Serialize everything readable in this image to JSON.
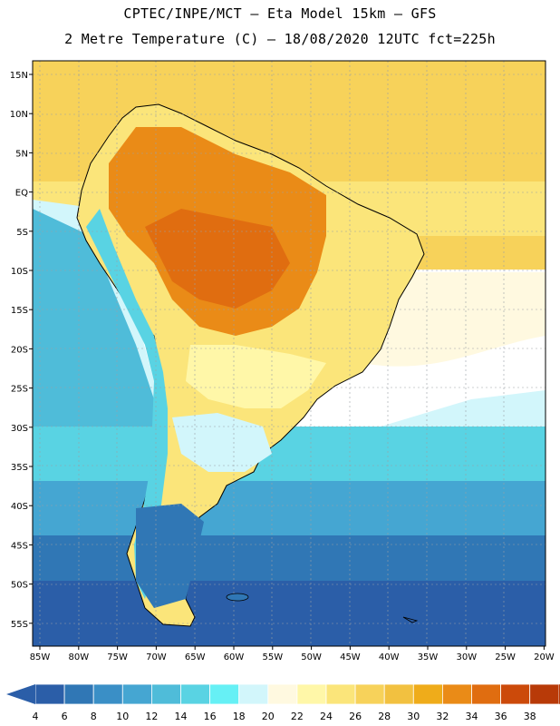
{
  "title_line1": "CPTEC/INPE/MCT –  Eta Model 15km – GFS",
  "title_line2": "2 Metre Temperature (C) – 18/08/2020 12UTC fct=225h",
  "lat_labels": [
    "15N",
    "10N",
    "5N",
    "EQ",
    "5S",
    "10S",
    "15S",
    "20S",
    "25S",
    "30S",
    "35S",
    "40S",
    "45S",
    "50S",
    "55S"
  ],
  "lon_labels": [
    "85W",
    "80W",
    "75W",
    "70W",
    "65W",
    "60W",
    "55W",
    "50W",
    "45W",
    "40W",
    "35W",
    "30W",
    "25W",
    "20W"
  ],
  "colorbar": {
    "values": [
      "4",
      "6",
      "8",
      "10",
      "12",
      "14",
      "16",
      "18",
      "20",
      "22",
      "24",
      "26",
      "28",
      "30",
      "32",
      "34",
      "36",
      "38"
    ],
    "colors": [
      "#2b5ea8",
      "#3077b5",
      "#3a8fc6",
      "#45a6d2",
      "#4fbcd9",
      "#59d3e3",
      "#66f0f5",
      "#d2f6fb",
      "#fff9e0",
      "#fff7a8",
      "#fbe57a",
      "#f7d25a",
      "#f2c140",
      "#efac1a",
      "#ea8b17",
      "#e06d10",
      "#cc4a0a",
      "#b83a08"
    ],
    "low_arrow_color": "#2b5ea8",
    "high_arrow_color": "#b83a08"
  },
  "palette": {
    "ocean_cold": "#2b5ea8",
    "ocean_cool": "#45a6d2",
    "ocean_mid": "#4fbcd9",
    "ocean_light": "#66f0f5",
    "ocean_warm": "#f7d25a",
    "ocean_pale": "#fff9e0",
    "land_hot": "#e06d10",
    "land_warm": "#ea8b17",
    "land_mild": "#fbe57a",
    "andes": "#59d3e3",
    "grid": "#9aa0a6"
  }
}
